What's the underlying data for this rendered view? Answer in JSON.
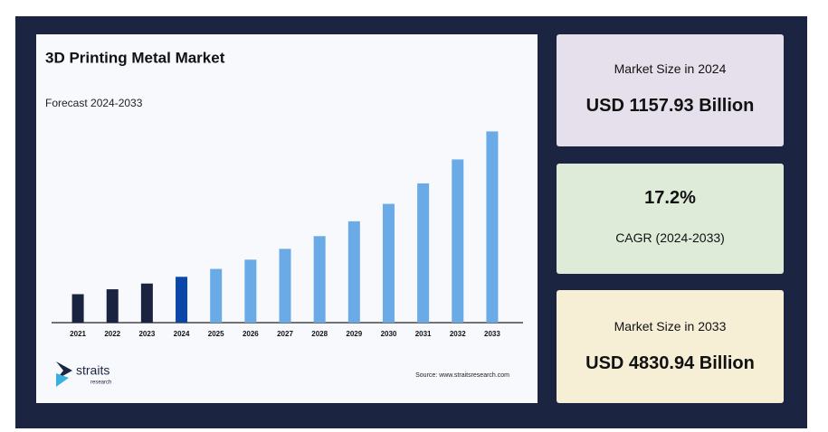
{
  "chart_data": {
    "type": "bar",
    "title": "3D Printing Metal Market",
    "subtitle": "Forecast 2024-2033",
    "categories": [
      "2021",
      "2022",
      "2023",
      "2024",
      "2025",
      "2026",
      "2027",
      "2028",
      "2029",
      "2030",
      "2031",
      "2032",
      "2033"
    ],
    "values": [
      719,
      843,
      988,
      1157.93,
      1357,
      1591,
      1864,
      2185,
      2561,
      3001,
      3518,
      4123,
      4830.94
    ],
    "colors": [
      "#1a2340",
      "#1a2340",
      "#1a2340",
      "#0b47a8",
      "#6aaae6",
      "#6aaae6",
      "#6aaae6",
      "#6aaae6",
      "#6aaae6",
      "#6aaae6",
      "#6aaae6",
      "#6aaae6",
      "#6aaae6"
    ],
    "ylim": [
      0,
      5000
    ]
  },
  "logo": {
    "name": "straits",
    "sub": "research"
  },
  "source": "Source: www.straitsresearch.com",
  "cards": [
    {
      "label": "Market Size in 2024",
      "value": "USD 1157.93 Billion"
    },
    {
      "value": "17.2%",
      "label": "CAGR (2024-2033)"
    },
    {
      "label": "Market Size in 2033",
      "value": "USD 4830.94 Billion"
    }
  ]
}
